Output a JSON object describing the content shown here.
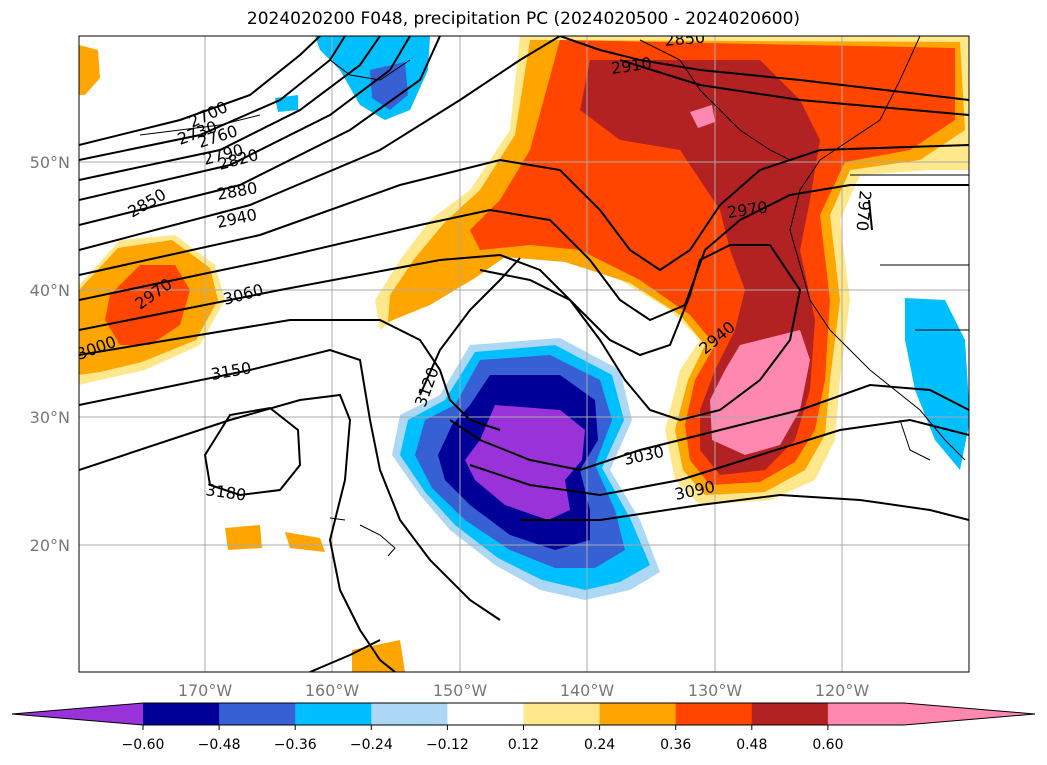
{
  "title": "2024020200 F048, precipitation PC (2024020500 - 2024020600)",
  "lat_labels": [
    "50°N",
    "40°N",
    "30°N",
    "20°N"
  ],
  "lon_labels": [
    "170°W",
    "160°W",
    "150°W",
    "140°W",
    "130°W",
    "120°W"
  ],
  "contour_labels": [
    "2700",
    "2730",
    "2760",
    "2790",
    "2820",
    "2850",
    "2880",
    "2940",
    "2970",
    "3000",
    "3060",
    "3150",
    "3180",
    "3120",
    "3030",
    "3090",
    "2850",
    "2910",
    "2970",
    "2940",
    "2970"
  ],
  "colorbar": {
    "ticks": [
      "-0.60",
      "-0.48",
      "-0.36",
      "-0.24",
      "-0.12",
      "0.12",
      "0.24",
      "0.36",
      "0.48",
      "0.60"
    ],
    "colors": [
      "#9933d9",
      "#000099",
      "#3660d4",
      "#00bfff",
      "#add8f5",
      "#ffffff",
      "#ffe88c",
      "#ffa500",
      "#ff4500",
      "#b22222",
      "#ff88b0",
      "#ff88b0"
    ]
  },
  "colors": {
    "grid": "#aaaaaa",
    "contour": "#000000"
  }
}
